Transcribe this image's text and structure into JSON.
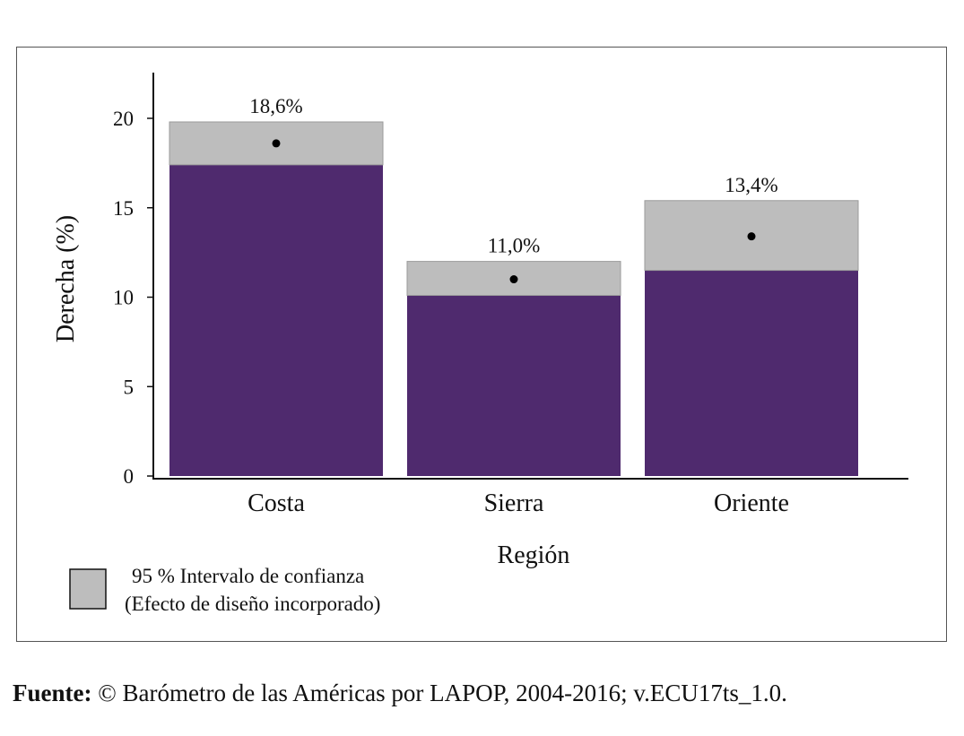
{
  "chart_data": {
    "type": "bar",
    "categories": [
      "Costa",
      "Sierra",
      "Oriente"
    ],
    "values": [
      18.6,
      11.0,
      13.4
    ],
    "ci_lower": [
      17.4,
      10.1,
      11.5
    ],
    "ci_upper": [
      19.8,
      12.0,
      15.4
    ],
    "data_labels": [
      "18,6%",
      "11,0%",
      "13,4%"
    ],
    "xlabel": "Región",
    "ylabel": "Derecha (%)",
    "ylim": [
      0,
      22.5
    ],
    "yticks": [
      0,
      5,
      10,
      15,
      20
    ],
    "legend": {
      "line1": "95 % Intervalo de confianza",
      "line2": "(Efecto de diseño incorporado)",
      "placement": "bottom-left"
    },
    "colors": {
      "bar": "#4f2a6e",
      "ci": "#bdbdbd",
      "point": "#000000",
      "axis": "#111111"
    }
  },
  "source": {
    "label": "Fuente:",
    "text": "© Barómetro de las Américas por LAPOP, 2004-2016; v.ECU17ts_1.0."
  }
}
